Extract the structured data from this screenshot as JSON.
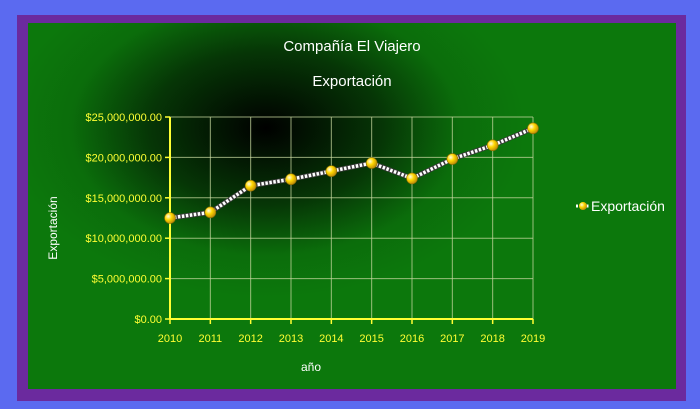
{
  "chart_data": {
    "type": "line",
    "title": "Compañía El Viajero",
    "subtitle": "Exportación",
    "xlabel": "año",
    "ylabel": "Exportación",
    "categories": [
      "2010",
      "2011",
      "2012",
      "2013",
      "2014",
      "2015",
      "2016",
      "2017",
      "2018",
      "2019"
    ],
    "series": [
      {
        "name": "Exportación",
        "values": [
          12500000,
          13200000,
          16500000,
          17300000,
          18300000,
          19300000,
          17400000,
          19800000,
          21500000,
          23600000
        ]
      }
    ],
    "ylim": [
      0,
      25000000
    ],
    "yticks": [
      0,
      5000000,
      10000000,
      15000000,
      20000000,
      25000000
    ],
    "ytick_labels": [
      "$0.00",
      "$5,000,000.00",
      "$10,000,000.00",
      "$15,000,000.00",
      "$20,000,000.00",
      "$25,000,000.00"
    ],
    "grid": true,
    "legend_position": "right"
  },
  "colors": {
    "line": "#ffffff",
    "marker": "#ffd700",
    "axis": "#ffff33",
    "grid": "#c8d8a0",
    "text": "#ffffff"
  }
}
